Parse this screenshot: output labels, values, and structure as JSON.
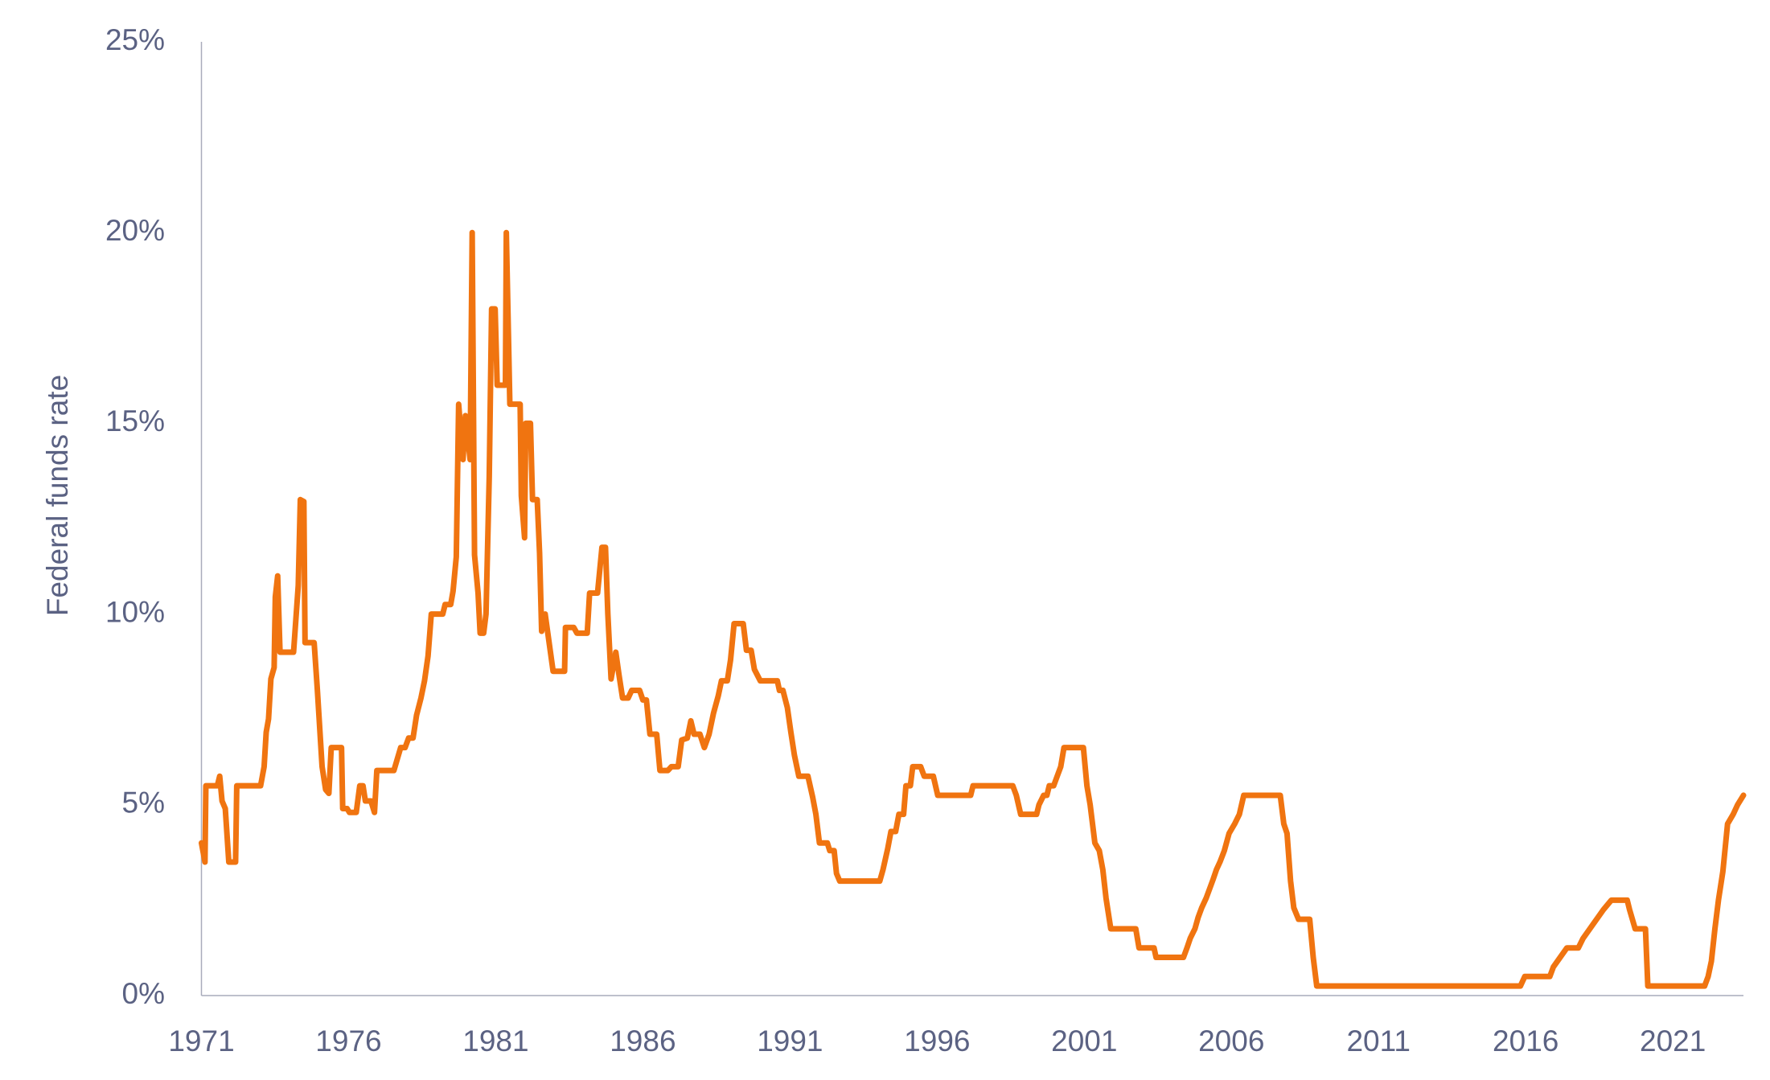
{
  "chart_data": {
    "type": "line",
    "y_label": "Federal funds rate",
    "color": "#f07410",
    "x": [
      1971.0,
      1971.12,
      1971.15,
      1971.54,
      1971.62,
      1971.7,
      1971.81,
      1971.93,
      1972.16,
      1972.2,
      1973.01,
      1973.13,
      1973.2,
      1973.28,
      1973.36,
      1973.47,
      1973.51,
      1973.59,
      1973.67,
      1974.13,
      1974.29,
      1974.36,
      1974.48,
      1974.52,
      1974.83,
      1974.94,
      1975.1,
      1975.22,
      1975.33,
      1975.41,
      1975.76,
      1975.8,
      1975.95,
      1976.03,
      1976.26,
      1976.38,
      1976.49,
      1976.57,
      1976.76,
      1976.88,
      1976.96,
      1977.54,
      1977.77,
      1977.92,
      1978.04,
      1978.19,
      1978.31,
      1978.46,
      1978.58,
      1978.7,
      1978.81,
      1979.2,
      1979.28,
      1979.47,
      1979.55,
      1979.66,
      1979.74,
      1979.89,
      1979.97,
      1980.13,
      1980.2,
      1980.28,
      1980.4,
      1980.47,
      1980.59,
      1980.67,
      1980.78,
      1980.86,
      1980.98,
      1981.05,
      1981.33,
      1981.36,
      1981.48,
      1981.83,
      1981.87,
      1981.98,
      1982.02,
      1982.18,
      1982.25,
      1982.41,
      1982.49,
      1982.56,
      1982.68,
      1982.95,
      1983.34,
      1983.37,
      1983.65,
      1983.76,
      1984.11,
      1984.19,
      1984.46,
      1984.61,
      1984.73,
      1984.81,
      1984.92,
      1985.08,
      1985.19,
      1985.31,
      1985.5,
      1985.62,
      1985.89,
      1986.0,
      1986.12,
      1986.24,
      1986.47,
      1986.58,
      1986.85,
      1986.97,
      1987.2,
      1987.32,
      1987.51,
      1987.63,
      1987.74,
      1987.94,
      1988.09,
      1988.25,
      1988.4,
      1988.56,
      1988.67,
      1988.87,
      1988.98,
      1989.1,
      1989.41,
      1989.52,
      1989.68,
      1989.79,
      1989.99,
      1990.57,
      1990.64,
      1990.76,
      1990.91,
      1991.03,
      1991.15,
      1991.3,
      1991.61,
      1991.77,
      1991.88,
      1992.0,
      1992.27,
      1992.35,
      1992.5,
      1992.58,
      1992.69,
      1994.05,
      1994.16,
      1994.32,
      1994.43,
      1994.59,
      1994.7,
      1994.86,
      1994.94,
      1995.09,
      1995.17,
      1995.44,
      1995.56,
      1995.87,
      1996.02,
      1997.14,
      1997.22,
      1998.57,
      1998.69,
      1998.84,
      1999.38,
      1999.46,
      1999.62,
      1999.73,
      1999.81,
      1999.96,
      2000.08,
      2000.2,
      2000.31,
      2000.97,
      2001.09,
      2001.2,
      2001.36,
      2001.51,
      2001.63,
      2001.74,
      2001.9,
      2002.75,
      2002.86,
      2003.37,
      2003.44,
      2004.37,
      2004.49,
      2004.6,
      2004.76,
      2004.87,
      2004.99,
      2005.14,
      2005.26,
      2005.38,
      2005.49,
      2005.61,
      2005.76,
      2005.92,
      2006.11,
      2006.27,
      2006.42,
      2007.66,
      2007.78,
      2007.89,
      2008.01,
      2008.12,
      2008.28,
      2008.66,
      2008.78,
      2008.9,
      2015.82,
      2015.97,
      2016.82,
      2016.94,
      2017.17,
      2017.4,
      2017.79,
      2017.95,
      2018.18,
      2018.41,
      2018.64,
      2018.91,
      2019.45,
      2019.53,
      2019.72,
      2020.07,
      2020.15,
      2022.08,
      2022.2,
      2022.31,
      2022.43,
      2022.55,
      2022.7,
      2022.86,
      2023.05,
      2023.2,
      2023.4
    ],
    "values": [
      4.0,
      3.5,
      5.5,
      5.5,
      5.75,
      5.1,
      4.9,
      3.5,
      3.5,
      5.5,
      5.5,
      6.0,
      6.9,
      7.25,
      8.3,
      8.6,
      10.45,
      11,
      9,
      9,
      10.75,
      13,
      12.95,
      9.25,
      9.25,
      8,
      6,
      5.4,
      5.3,
      6.5,
      6.5,
      4.9,
      4.9,
      4.8,
      4.8,
      5.5,
      5.5,
      5.1,
      5.1,
      4.8,
      5.9,
      5.9,
      6.5,
      6.5,
      6.75,
      6.75,
      7.35,
      7.8,
      8.25,
      8.9,
      10,
      10,
      10.25,
      10.25,
      10.6,
      11.5,
      15.5,
      14.05,
      15.2,
      14.05,
      20,
      11.55,
      10.55,
      9.5,
      9.5,
      10,
      13.6,
      18,
      18,
      16,
      16,
      20,
      15.5,
      15.5,
      13.1,
      12,
      15,
      15,
      13,
      13,
      11.6,
      9.55,
      10,
      8.5,
      8.5,
      9.65,
      9.65,
      9.5,
      9.5,
      10.55,
      10.55,
      11.75,
      11.75,
      10,
      8.3,
      9,
      8.4,
      7.8,
      7.8,
      8,
      8,
      7.75,
      7.75,
      6.85,
      6.85,
      5.9,
      5.9,
      6,
      6,
      6.7,
      6.75,
      7.2,
      6.85,
      6.85,
      6.5,
      6.85,
      7.4,
      7.85,
      8.25,
      8.25,
      8.8,
      9.75,
      9.75,
      9.05,
      9.05,
      8.55,
      8.25,
      8.25,
      8,
      8,
      7.55,
      6.9,
      6.3,
      5.75,
      5.75,
      5.2,
      4.75,
      4,
      4,
      3.8,
      3.8,
      3.2,
      3,
      3,
      3.3,
      3.85,
      4.3,
      4.3,
      4.75,
      4.75,
      5.5,
      5.5,
      6,
      6,
      5.75,
      5.75,
      5.25,
      5.25,
      5.5,
      5.5,
      5.25,
      4.75,
      4.75,
      5,
      5.25,
      5.25,
      5.5,
      5.5,
      5.75,
      6,
      6.5,
      6.5,
      5.5,
      5,
      4,
      3.8,
      3.3,
      2.55,
      1.75,
      1.75,
      1.25,
      1.25,
      1,
      1,
      1.25,
      1.5,
      1.75,
      2.05,
      2.3,
      2.55,
      2.8,
      3.05,
      3.3,
      3.5,
      3.8,
      4.25,
      4.5,
      4.75,
      5.25,
      5.25,
      4.5,
      4.25,
      3,
      2.3,
      2,
      2,
      1,
      0.25,
      0.25,
      0.5,
      0.5,
      0.75,
      1,
      1.25,
      1.25,
      1.5,
      1.75,
      2,
      2.25,
      2.5,
      2.5,
      2.25,
      1.75,
      1.75,
      0.25,
      0.25,
      0.5,
      0.9,
      1.75,
      2.5,
      3.25,
      4.5,
      4.75,
      5,
      5.25
    ],
    "xlim": [
      1971,
      2023.4
    ],
    "xticks": [
      1971,
      1976,
      1981,
      1986,
      1991,
      1996,
      2001,
      2006,
      2011,
      2016,
      2021
    ],
    "ylim": [
      0,
      25
    ],
    "yticks": [
      {
        "value": 0,
        "label": "0%"
      },
      {
        "value": 5,
        "label": "5%"
      },
      {
        "value": 10,
        "label": "10%"
      },
      {
        "value": 15,
        "label": "15%"
      },
      {
        "value": 20,
        "label": "20%"
      },
      {
        "value": 25,
        "label": "25%"
      }
    ],
    "grid": false
  }
}
